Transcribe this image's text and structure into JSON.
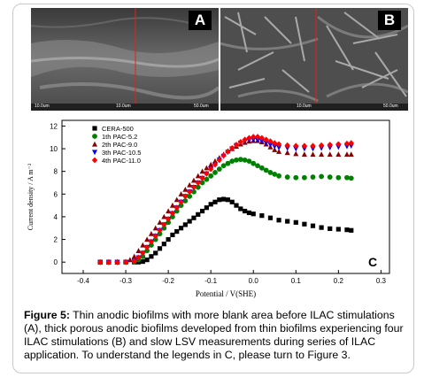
{
  "figure": {
    "panel_a_letter": "A",
    "panel_b_letter": "B",
    "panel_c_letter": "C",
    "sem_a_scale_left": "10.0um",
    "sem_a_scale_right": "50.0um",
    "sem_b_scale_left": "10.0um",
    "sem_b_scale_right": "50.0um",
    "caption_label": "Figure 5:",
    "caption_text": " Thin anodic biofilms with more blank area before ILAC stimulations (A), thick porous anodic biofilms developed from thin biofilms experiencing four ILAC stimulations (B) and slow LSV measurements during series of ILAC application. To understand the legends in C, please turn to Figure 3."
  },
  "chart_data": {
    "type": "scatter",
    "xlabel": "Potential / V(SHE)",
    "ylabel": "Current density / A m⁻²",
    "xlim": [
      -0.45,
      0.32
    ],
    "ylim": [
      -1,
      12.5
    ],
    "xticks": [
      "-0.4",
      "-0.3",
      "-0.2",
      "-0.1",
      "0.0",
      "0.1",
      "0.2",
      "0.3"
    ],
    "yticks": [
      "0",
      "2",
      "4",
      "6",
      "8",
      "10",
      "12"
    ],
    "legend_position": "top-left",
    "series": [
      {
        "name": "CERA-500",
        "marker": "square",
        "color": "#000000",
        "points": [
          [
            -0.36,
            0.0
          ],
          [
            -0.34,
            0.0
          ],
          [
            -0.32,
            0.0
          ],
          [
            -0.3,
            0.0
          ],
          [
            -0.28,
            0.0
          ],
          [
            -0.27,
            0.0
          ],
          [
            -0.26,
            0.05
          ],
          [
            -0.25,
            0.2
          ],
          [
            -0.24,
            0.5
          ],
          [
            -0.23,
            0.8
          ],
          [
            -0.22,
            1.2
          ],
          [
            -0.21,
            1.6
          ],
          [
            -0.2,
            2.0
          ],
          [
            -0.19,
            2.4
          ],
          [
            -0.18,
            2.7
          ],
          [
            -0.17,
            3.0
          ],
          [
            -0.16,
            3.3
          ],
          [
            -0.15,
            3.6
          ],
          [
            -0.14,
            3.9
          ],
          [
            -0.13,
            4.2
          ],
          [
            -0.12,
            4.5
          ],
          [
            -0.11,
            4.8
          ],
          [
            -0.1,
            5.1
          ],
          [
            -0.09,
            5.3
          ],
          [
            -0.08,
            5.5
          ],
          [
            -0.07,
            5.55
          ],
          [
            -0.06,
            5.5
          ],
          [
            -0.05,
            5.3
          ],
          [
            -0.04,
            5.0
          ],
          [
            -0.03,
            4.7
          ],
          [
            -0.02,
            4.5
          ],
          [
            -0.01,
            4.35
          ],
          [
            0.0,
            4.25
          ],
          [
            0.02,
            4.1
          ],
          [
            0.04,
            3.9
          ],
          [
            0.06,
            3.7
          ],
          [
            0.08,
            3.6
          ],
          [
            0.1,
            3.5
          ],
          [
            0.12,
            3.35
          ],
          [
            0.14,
            3.2
          ],
          [
            0.16,
            3.05
          ],
          [
            0.18,
            2.95
          ],
          [
            0.2,
            2.9
          ],
          [
            0.22,
            2.85
          ],
          [
            0.23,
            2.8
          ]
        ]
      },
      {
        "name": "1th PAC-5.2",
        "marker": "circle",
        "color": "#008000",
        "points": [
          [
            -0.36,
            0.0
          ],
          [
            -0.34,
            0.0
          ],
          [
            -0.32,
            0.0
          ],
          [
            -0.3,
            0.0
          ],
          [
            -0.28,
            0.05
          ],
          [
            -0.27,
            0.2
          ],
          [
            -0.26,
            0.5
          ],
          [
            -0.25,
            1.0
          ],
          [
            -0.24,
            1.5
          ],
          [
            -0.23,
            2.0
          ],
          [
            -0.22,
            2.5
          ],
          [
            -0.21,
            3.0
          ],
          [
            -0.2,
            3.5
          ],
          [
            -0.19,
            4.0
          ],
          [
            -0.18,
            4.5
          ],
          [
            -0.17,
            5.0
          ],
          [
            -0.16,
            5.4
          ],
          [
            -0.15,
            5.8
          ],
          [
            -0.14,
            6.2
          ],
          [
            -0.13,
            6.6
          ],
          [
            -0.12,
            7.0
          ],
          [
            -0.11,
            7.3
          ],
          [
            -0.1,
            7.6
          ],
          [
            -0.09,
            7.9
          ],
          [
            -0.08,
            8.2
          ],
          [
            -0.07,
            8.5
          ],
          [
            -0.06,
            8.7
          ],
          [
            -0.05,
            8.9
          ],
          [
            -0.04,
            9.0
          ],
          [
            -0.03,
            9.05
          ],
          [
            -0.02,
            9.0
          ],
          [
            -0.01,
            8.9
          ],
          [
            0.0,
            8.7
          ],
          [
            0.01,
            8.5
          ],
          [
            0.02,
            8.3
          ],
          [
            0.03,
            8.1
          ],
          [
            0.04,
            7.9
          ],
          [
            0.05,
            7.75
          ],
          [
            0.06,
            7.6
          ],
          [
            0.08,
            7.5
          ],
          [
            0.1,
            7.45
          ],
          [
            0.12,
            7.45
          ],
          [
            0.14,
            7.5
          ],
          [
            0.16,
            7.55
          ],
          [
            0.18,
            7.5
          ],
          [
            0.2,
            7.45
          ],
          [
            0.22,
            7.45
          ],
          [
            0.23,
            7.4
          ]
        ]
      },
      {
        "name": "2th PAC-9.0",
        "marker": "triangle-up",
        "color": "#8b0000",
        "points": [
          [
            -0.36,
            0.0
          ],
          [
            -0.34,
            0.0
          ],
          [
            -0.32,
            0.0
          ],
          [
            -0.3,
            0.05
          ],
          [
            -0.29,
            0.2
          ],
          [
            -0.28,
            0.5
          ],
          [
            -0.27,
            1.0
          ],
          [
            -0.26,
            1.5
          ],
          [
            -0.25,
            2.0
          ],
          [
            -0.24,
            2.5
          ],
          [
            -0.23,
            3.0
          ],
          [
            -0.22,
            3.5
          ],
          [
            -0.21,
            4.0
          ],
          [
            -0.2,
            4.5
          ],
          [
            -0.19,
            5.0
          ],
          [
            -0.18,
            5.5
          ],
          [
            -0.17,
            6.0
          ],
          [
            -0.16,
            6.4
          ],
          [
            -0.15,
            6.8
          ],
          [
            -0.14,
            7.2
          ],
          [
            -0.13,
            7.6
          ],
          [
            -0.12,
            8.0
          ],
          [
            -0.11,
            8.3
          ],
          [
            -0.1,
            8.6
          ],
          [
            -0.09,
            8.9
          ],
          [
            -0.08,
            9.2
          ],
          [
            -0.07,
            9.5
          ],
          [
            -0.06,
            9.8
          ],
          [
            -0.05,
            10.0
          ],
          [
            -0.04,
            10.2
          ],
          [
            -0.03,
            10.4
          ],
          [
            -0.02,
            10.55
          ],
          [
            -0.01,
            10.65
          ],
          [
            0.0,
            10.7
          ],
          [
            0.01,
            10.7
          ],
          [
            0.02,
            10.6
          ],
          [
            0.03,
            10.4
          ],
          [
            0.04,
            10.15
          ],
          [
            0.05,
            9.9
          ],
          [
            0.06,
            9.75
          ],
          [
            0.08,
            9.65
          ],
          [
            0.1,
            9.55
          ],
          [
            0.12,
            9.5
          ],
          [
            0.14,
            9.5
          ],
          [
            0.16,
            9.5
          ],
          [
            0.18,
            9.5
          ],
          [
            0.2,
            9.5
          ],
          [
            0.22,
            9.5
          ],
          [
            0.23,
            9.5
          ]
        ]
      },
      {
        "name": "3th PAC-10.5",
        "marker": "triangle-down",
        "color": "#0000ff",
        "points": [
          [
            -0.36,
            0.0
          ],
          [
            -0.34,
            0.0
          ],
          [
            -0.32,
            0.0
          ],
          [
            -0.3,
            0.0
          ],
          [
            -0.28,
            0.1
          ],
          [
            -0.27,
            0.4
          ],
          [
            -0.26,
            0.8
          ],
          [
            -0.25,
            1.3
          ],
          [
            -0.24,
            1.8
          ],
          [
            -0.23,
            2.3
          ],
          [
            -0.22,
            2.8
          ],
          [
            -0.21,
            3.3
          ],
          [
            -0.2,
            3.8
          ],
          [
            -0.19,
            4.3
          ],
          [
            -0.18,
            4.8
          ],
          [
            -0.17,
            5.3
          ],
          [
            -0.16,
            5.8
          ],
          [
            -0.15,
            6.2
          ],
          [
            -0.14,
            6.6
          ],
          [
            -0.13,
            7.0
          ],
          [
            -0.12,
            7.4
          ],
          [
            -0.11,
            7.8
          ],
          [
            -0.1,
            8.2
          ],
          [
            -0.09,
            8.6
          ],
          [
            -0.08,
            9.0
          ],
          [
            -0.07,
            9.35
          ],
          [
            -0.06,
            9.7
          ],
          [
            -0.05,
            10.0
          ],
          [
            -0.04,
            10.3
          ],
          [
            -0.03,
            10.5
          ],
          [
            -0.02,
            10.65
          ],
          [
            -0.01,
            10.75
          ],
          [
            0.0,
            10.8
          ],
          [
            0.01,
            10.75
          ],
          [
            0.02,
            10.65
          ],
          [
            0.03,
            10.5
          ],
          [
            0.04,
            10.35
          ],
          [
            0.05,
            10.2
          ],
          [
            0.06,
            10.1
          ],
          [
            0.08,
            10.05
          ],
          [
            0.1,
            10.0
          ],
          [
            0.12,
            10.0
          ],
          [
            0.14,
            10.0
          ],
          [
            0.16,
            10.05
          ],
          [
            0.18,
            10.1
          ],
          [
            0.2,
            10.15
          ],
          [
            0.22,
            10.2
          ],
          [
            0.23,
            10.25
          ]
        ]
      },
      {
        "name": "4th PAC-11.0",
        "marker": "diamond",
        "color": "#ff0000",
        "points": [
          [
            -0.36,
            0.0
          ],
          [
            -0.34,
            0.0
          ],
          [
            -0.32,
            0.0
          ],
          [
            -0.3,
            0.0
          ],
          [
            -0.28,
            0.1
          ],
          [
            -0.27,
            0.4
          ],
          [
            -0.26,
            0.8
          ],
          [
            -0.25,
            1.3
          ],
          [
            -0.24,
            1.8
          ],
          [
            -0.23,
            2.3
          ],
          [
            -0.22,
            2.8
          ],
          [
            -0.21,
            3.3
          ],
          [
            -0.2,
            3.8
          ],
          [
            -0.19,
            4.3
          ],
          [
            -0.18,
            4.8
          ],
          [
            -0.17,
            5.3
          ],
          [
            -0.16,
            5.8
          ],
          [
            -0.15,
            6.2
          ],
          [
            -0.14,
            6.6
          ],
          [
            -0.13,
            7.0
          ],
          [
            -0.12,
            7.4
          ],
          [
            -0.11,
            7.8
          ],
          [
            -0.1,
            8.2
          ],
          [
            -0.09,
            8.6
          ],
          [
            -0.08,
            9.0
          ],
          [
            -0.07,
            9.4
          ],
          [
            -0.06,
            9.75
          ],
          [
            -0.05,
            10.05
          ],
          [
            -0.04,
            10.35
          ],
          [
            -0.03,
            10.6
          ],
          [
            -0.02,
            10.8
          ],
          [
            -0.01,
            10.95
          ],
          [
            0.0,
            11.05
          ],
          [
            0.01,
            11.05
          ],
          [
            0.02,
            10.95
          ],
          [
            0.03,
            10.8
          ],
          [
            0.04,
            10.65
          ],
          [
            0.05,
            10.5
          ],
          [
            0.06,
            10.4
          ],
          [
            0.08,
            10.3
          ],
          [
            0.1,
            10.25
          ],
          [
            0.12,
            10.25
          ],
          [
            0.14,
            10.25
          ],
          [
            0.16,
            10.3
          ],
          [
            0.18,
            10.35
          ],
          [
            0.2,
            10.4
          ],
          [
            0.22,
            10.45
          ],
          [
            0.23,
            10.5
          ]
        ]
      }
    ]
  }
}
